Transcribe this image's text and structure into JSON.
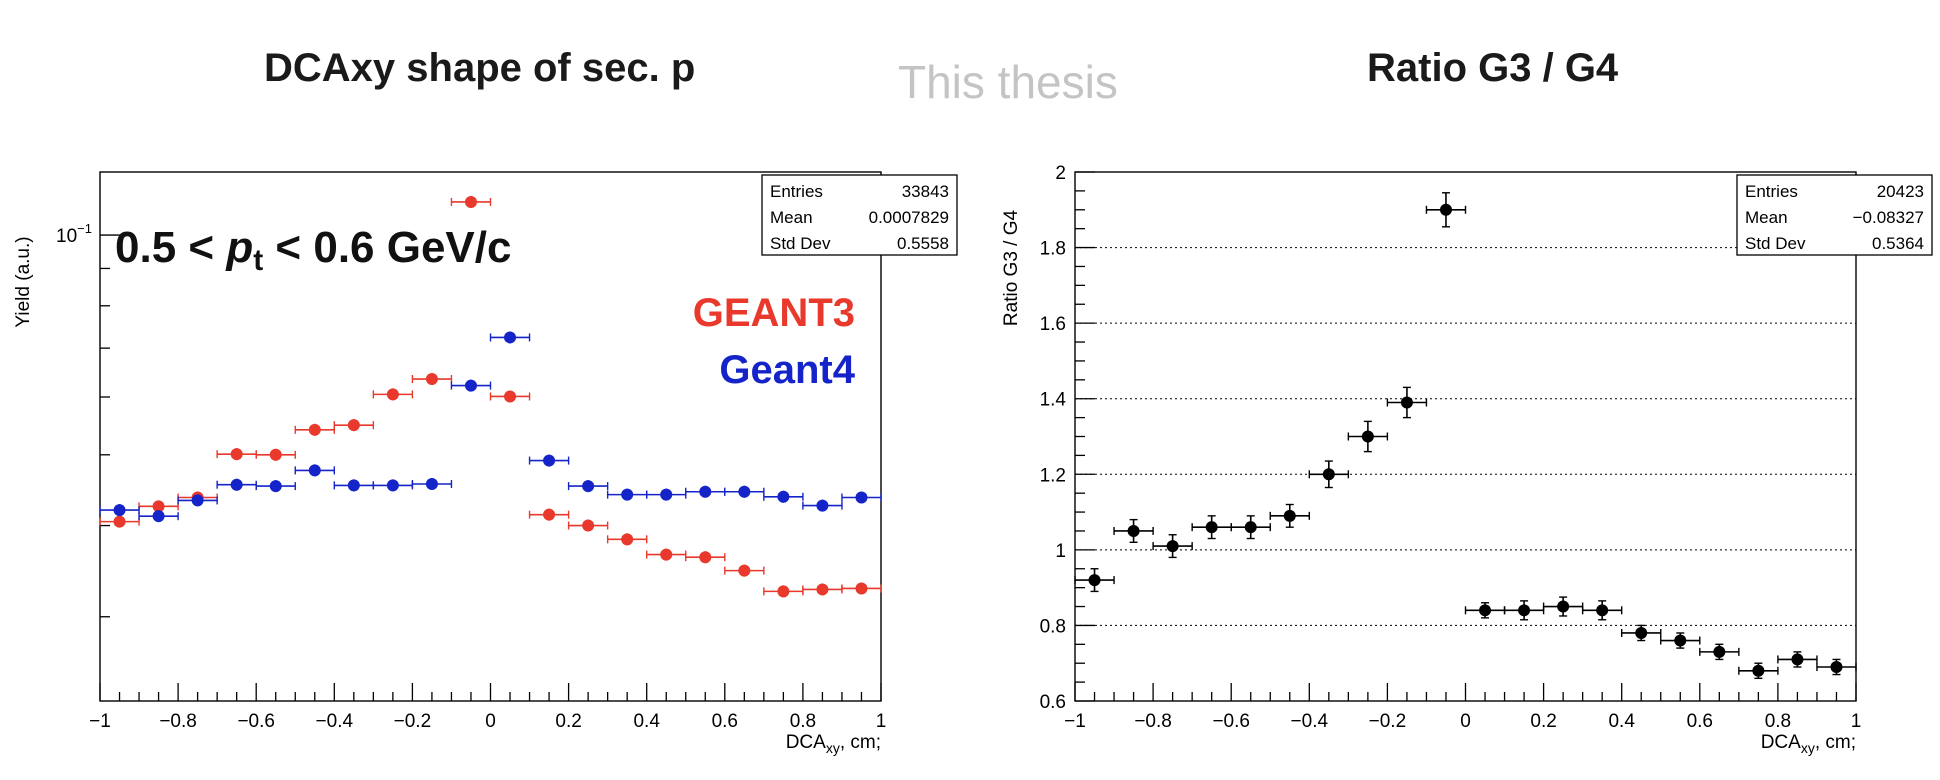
{
  "header": {
    "left_title": "DCAxy shape of sec. p",
    "watermark": "This thesis",
    "right_title": "Ratio G3 / G4"
  },
  "chart_data": [
    {
      "type": "scatter",
      "ylabel": "Yield (a.u.)",
      "xlabel_main": "DCA",
      "xlabel_sub": "xy",
      "xlabel_unit": ", cm;",
      "xlim": [
        -1,
        1
      ],
      "ylog": true,
      "ylim": [
        0.023,
        0.122
      ],
      "x_ticks": [
        "−1",
        "−0.8",
        "−0.6",
        "−0.4",
        "−0.2",
        "0",
        "0.2",
        "0.4",
        "0.6",
        "0.8",
        "1"
      ],
      "y_tick_label": "10",
      "y_tick_label_exp": "−1",
      "annotation": {
        "prefix": "0.5 < ",
        "var": "p",
        "sub": "t",
        "suffix": " < 0.6 GeV/c"
      },
      "stats": {
        "entries_label": "Entries",
        "entries_value": "33843",
        "mean_label": "Mean",
        "mean_value": "0.0007829",
        "stddev_label": "Std Dev",
        "stddev_value": "0.5558"
      },
      "x_half_width": 0.05,
      "series": [
        {
          "name": "GEANT3",
          "color": "#e8392c",
          "x": [
            -0.95,
            -0.85,
            -0.75,
            -0.65,
            -0.55,
            -0.45,
            -0.35,
            -0.25,
            -0.15,
            -0.05,
            0.05,
            0.15,
            0.25,
            0.35,
            0.45,
            0.55,
            0.65,
            0.75,
            0.85,
            0.95
          ],
          "y": [
            0.0405,
            0.0425,
            0.0437,
            0.0501,
            0.05,
            0.0541,
            0.0549,
            0.0605,
            0.0635,
            0.111,
            0.0601,
            0.0414,
            0.04,
            0.0383,
            0.0365,
            0.0362,
            0.0347,
            0.0325,
            0.0327,
            0.0328
          ]
        },
        {
          "name": "Geant4",
          "color": "#1424c8",
          "x": [
            -0.95,
            -0.85,
            -0.75,
            -0.65,
            -0.55,
            -0.45,
            -0.35,
            -0.25,
            -0.15,
            -0.05,
            0.05,
            0.15,
            0.25,
            0.35,
            0.45,
            0.55,
            0.65,
            0.75,
            0.85,
            0.95
          ],
          "y": [
            0.042,
            0.0412,
            0.0433,
            0.0455,
            0.0453,
            0.0476,
            0.0454,
            0.0454,
            0.0456,
            0.0622,
            0.0724,
            0.0491,
            0.0453,
            0.0441,
            0.0441,
            0.0445,
            0.0445,
            0.0438,
            0.0426,
            0.0437
          ]
        }
      ]
    },
    {
      "type": "scatter",
      "ylabel": "Ratio G3 / G4",
      "xlabel_main": "DCA",
      "xlabel_sub": "xy",
      "xlabel_unit": ", cm;",
      "xlim": [
        -1,
        1
      ],
      "ylim": [
        0.6,
        2.0
      ],
      "grid_y": true,
      "x_ticks": [
        "−1",
        "−0.8",
        "−0.6",
        "−0.4",
        "−0.2",
        "0",
        "0.2",
        "0.4",
        "0.6",
        "0.8",
        "1"
      ],
      "y_ticks": [
        "0.6",
        "0.8",
        "1",
        "1.2",
        "1.4",
        "1.6",
        "1.8",
        "2"
      ],
      "stats": {
        "entries_label": "Entries",
        "entries_value": "20423",
        "mean_label": "Mean",
        "mean_value": "−0.08327",
        "stddev_label": "Std Dev",
        "stddev_value": "0.5364"
      },
      "x_half_width": 0.05,
      "series": [
        {
          "color": "#000000",
          "x": [
            -0.95,
            -0.85,
            -0.75,
            -0.65,
            -0.55,
            -0.45,
            -0.35,
            -0.25,
            -0.15,
            -0.05,
            0.05,
            0.15,
            0.25,
            0.35,
            0.45,
            0.55,
            0.65,
            0.75,
            0.85,
            0.95
          ],
          "y": [
            0.92,
            1.05,
            1.01,
            1.06,
            1.06,
            1.09,
            1.2,
            1.3,
            1.39,
            1.9,
            0.84,
            0.84,
            0.85,
            0.84,
            0.78,
            0.76,
            0.73,
            0.68,
            0.71,
            0.69
          ],
          "err": [
            0.03,
            0.03,
            0.03,
            0.03,
            0.03,
            0.03,
            0.035,
            0.04,
            0.04,
            0.045,
            0.02,
            0.025,
            0.025,
            0.025,
            0.02,
            0.02,
            0.02,
            0.02,
            0.02,
            0.02
          ]
        }
      ]
    }
  ]
}
